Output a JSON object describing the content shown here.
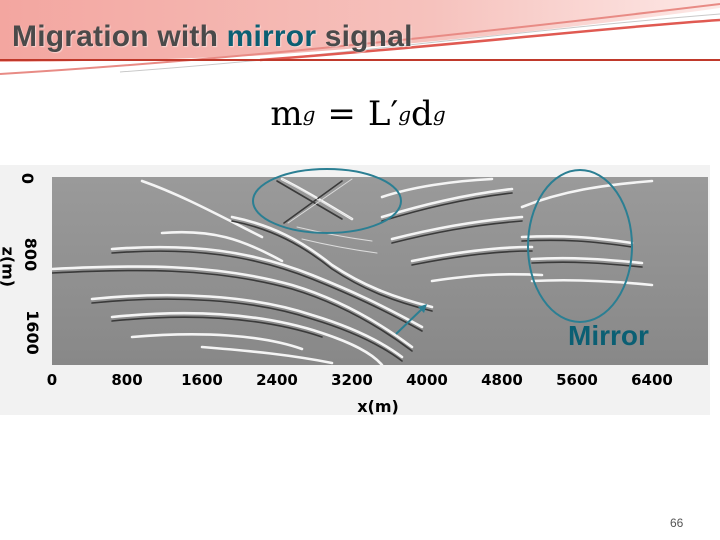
{
  "slide": {
    "title_prefix": "Migration with ",
    "title_accent": "mirror",
    "title_suffix": " signal",
    "page_number": "66"
  },
  "equation": {
    "lhs": "m",
    "lhs_sub": "g",
    "operator": "=",
    "rhs_operator": "L′",
    "rhs_operator_sub": "g",
    "rhs_vector": "d",
    "rhs_vector_sub": "g"
  },
  "figure": {
    "x_axis_title": "x(m)",
    "y_axis_title": "z(m)",
    "x_ticks": [
      "0",
      "800",
      "1600",
      "2400",
      "3200",
      "4000",
      "4800",
      "5600",
      "6400"
    ],
    "y_ticks": [
      "0",
      "800",
      "1600"
    ],
    "annotation_label": "Mirror"
  },
  "colors": {
    "title_text": "#4a4a4a",
    "accent": "#0b5f73",
    "header_band": "#e87b7b",
    "header_rule": "#c0392b",
    "ellipse_stroke": "#2b7f93"
  }
}
